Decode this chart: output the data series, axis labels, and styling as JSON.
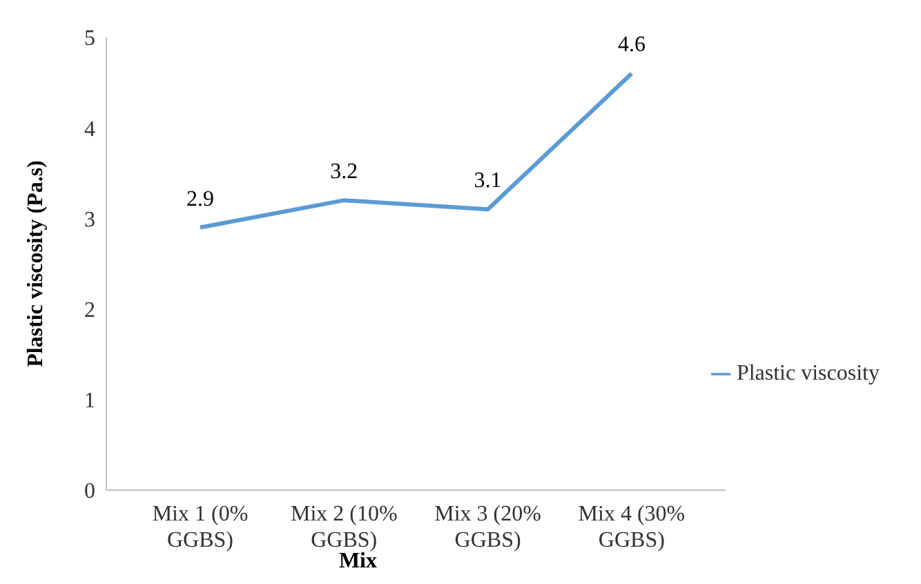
{
  "chart_data": {
    "type": "line",
    "xlabel": "Mix",
    "ylabel": "Plastic viscosity (Pa.s)",
    "categories": [
      "Mix 1 (0% GGBS)",
      "Mix 2 (10% GGBS)",
      "Mix 3 (20% GGBS)",
      "Mix 4 (30% GGBS)"
    ],
    "series": [
      {
        "name": "Plastic viscosity",
        "color": "#5b9bd5",
        "values": [
          2.9,
          3.2,
          3.1,
          4.6
        ]
      }
    ],
    "ylim": [
      0,
      5
    ],
    "yticks": [
      0,
      1,
      2,
      3,
      4,
      5
    ],
    "grid": false,
    "legend": "right",
    "data_labels": true,
    "marker": "none",
    "line_style": "solid"
  }
}
